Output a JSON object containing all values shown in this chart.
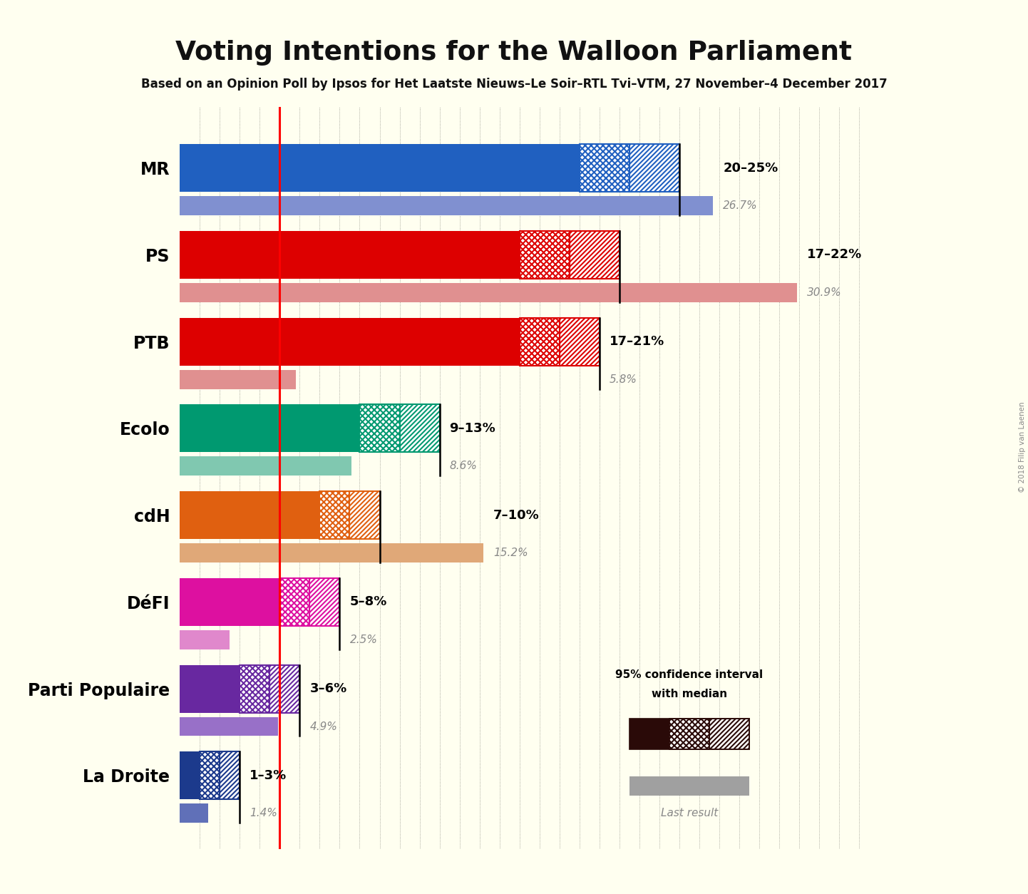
{
  "title": "Voting Intentions for the Walloon Parliament",
  "subtitle": "Based on an Opinion Poll by Ipsos for Het Laatste Nieuws–Le Soir–RTL Tvi–VTM, 27 November–4 December 2017",
  "copyright": "© 2018 Filip van Laenen",
  "background_color": "#fffff0",
  "parties": [
    "MR",
    "PS",
    "PTB",
    "Ecolo",
    "cdH",
    "DéFI",
    "Parti Populaire",
    "La Droite"
  ],
  "colors": [
    "#2060c0",
    "#dd0000",
    "#dd0000",
    "#009970",
    "#e06010",
    "#dd10a0",
    "#6828a0",
    "#1c3a8c"
  ],
  "ci_low": [
    20,
    17,
    17,
    9,
    7,
    5,
    3,
    1
  ],
  "ci_high": [
    25,
    22,
    21,
    13,
    10,
    8,
    6,
    3
  ],
  "median": [
    22.5,
    19.5,
    19.0,
    11.0,
    8.5,
    6.5,
    4.5,
    2.0
  ],
  "last_result": [
    26.7,
    30.9,
    5.8,
    8.6,
    15.2,
    2.5,
    4.9,
    1.4
  ],
  "last_result_colors": [
    "#8090d0",
    "#e09090",
    "#e09090",
    "#80c8b0",
    "#e0a878",
    "#e088cc",
    "#9870c8",
    "#6070b8"
  ],
  "range_labels": [
    "20–25%",
    "17–22%",
    "17–21%",
    "9–13%",
    "7–10%",
    "5–8%",
    "3–6%",
    "1–3%"
  ],
  "last_result_labels": [
    "26.7%",
    "30.9%",
    "5.8%",
    "8.6%",
    "15.2%",
    "2.5%",
    "4.9%",
    "1.4%"
  ],
  "red_line_x": 5.0,
  "xlim": [
    0,
    35
  ],
  "bar_height": 0.55,
  "last_result_bar_height": 0.22,
  "legend_ci_color": "#2a0a08",
  "legend_lr_color": "#a0a0a0"
}
